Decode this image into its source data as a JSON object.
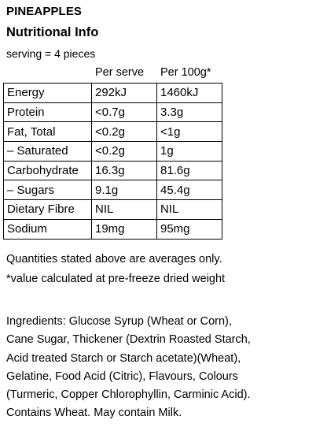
{
  "product": {
    "name": "PINEAPPLES",
    "section_title": "Nutritional Info",
    "serving": "serving = 4 pieces"
  },
  "table": {
    "columns": [
      "Per serve",
      "Per 100g*"
    ],
    "rows": [
      {
        "label": "Energy",
        "per_serve": "292kJ",
        "per_100g": "1460kJ"
      },
      {
        "label": "Protein",
        "per_serve": "<0.7g",
        "per_100g": "3.3g"
      },
      {
        "label": "Fat, Total",
        "per_serve": "<0.2g",
        "per_100g": "<1g"
      },
      {
        "label": "– Saturated",
        "per_serve": "<0.2g",
        "per_100g": "1g"
      },
      {
        "label": "Carbohydrate",
        "per_serve": "16.3g",
        "per_100g": "81.6g"
      },
      {
        "label": "– Sugars",
        "per_serve": "9.1g",
        "per_100g": "45.4g"
      },
      {
        "label": "Dietary Fibre",
        "per_serve": "NIL",
        "per_100g": "NIL"
      },
      {
        "label": "Sodium",
        "per_serve": "19mg",
        "per_100g": "95mg"
      }
    ]
  },
  "notes": {
    "averages": "Quantities stated above are averages only.",
    "asterisk": "*value calculated at pre-freeze dried weight"
  },
  "ingredients": {
    "lines": [
      "Ingredients: Glucose Syrup (Wheat or Corn),",
      "Cane Sugar, Thickener (Dextrin Roasted Starch,",
      "Acid treated Starch or Starch acetate)(Wheat),",
      "Gelatine, Food Acid (Citric), Flavours, Colours",
      "(Turmeric, Copper Chlorophyllin, Carminic Acid).",
      "Contains Wheat. May contain Milk."
    ]
  }
}
